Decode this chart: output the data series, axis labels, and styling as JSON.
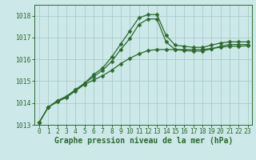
{
  "x": [
    0,
    1,
    2,
    3,
    4,
    5,
    6,
    7,
    8,
    9,
    10,
    11,
    12,
    13,
    14,
    15,
    16,
    17,
    18,
    19,
    20,
    21,
    22,
    23
  ],
  "line1": [
    1013.1,
    1013.8,
    1014.1,
    1014.3,
    1014.6,
    1014.9,
    1015.3,
    1015.6,
    1016.1,
    1016.7,
    1017.3,
    1017.9,
    1018.05,
    1018.05,
    1017.1,
    1016.65,
    1016.6,
    1016.55,
    1016.55,
    1016.65,
    1016.75,
    1016.8,
    1016.8,
    1016.8
  ],
  "line2": [
    1013.1,
    1013.8,
    1014.1,
    1014.3,
    1014.6,
    1014.9,
    1015.2,
    1015.5,
    1015.9,
    1016.45,
    1016.95,
    1017.6,
    1017.85,
    1017.85,
    1016.8,
    1016.45,
    1016.4,
    1016.38,
    1016.38,
    1016.48,
    1016.6,
    1016.68,
    1016.68,
    1016.68
  ],
  "line3": [
    1013.1,
    1013.8,
    1014.05,
    1014.25,
    1014.55,
    1014.85,
    1015.05,
    1015.25,
    1015.5,
    1015.8,
    1016.05,
    1016.25,
    1016.4,
    1016.45,
    1016.45,
    1016.45,
    1016.45,
    1016.45,
    1016.45,
    1016.5,
    1016.55,
    1016.6,
    1016.6,
    1016.62
  ],
  "bg_color": "#cce8e8",
  "grid_color": "#aacccc",
  "line_color": "#2d6a2d",
  "text_color": "#2d6a2d",
  "marker": "D",
  "marker_size": 2.5,
  "xlabel": "Graphe pression niveau de la mer (hPa)",
  "ylim": [
    1013.0,
    1018.5
  ],
  "xlim": [
    -0.5,
    23.5
  ],
  "yticks": [
    1013,
    1014,
    1015,
    1016,
    1017,
    1018
  ],
  "xticks": [
    0,
    1,
    2,
    3,
    4,
    5,
    6,
    7,
    8,
    9,
    10,
    11,
    12,
    13,
    14,
    15,
    16,
    17,
    18,
    19,
    20,
    21,
    22,
    23
  ],
  "tick_fontsize": 5.8,
  "xlabel_fontsize": 7.0,
  "linewidth": 0.9
}
